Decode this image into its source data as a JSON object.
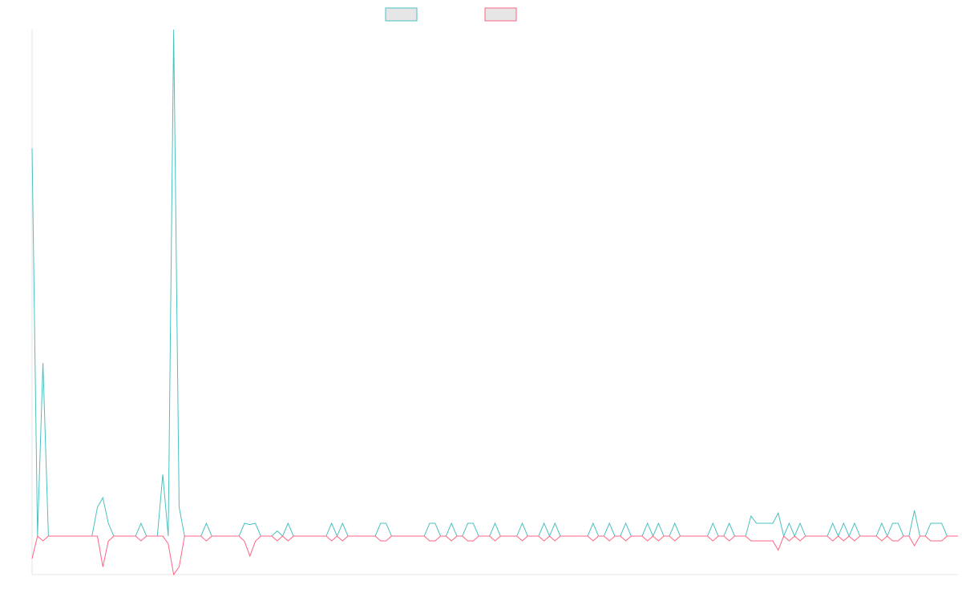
{
  "chart_data": {
    "type": "line",
    "ylim": [
      -3,
      39.5
    ],
    "series": [
      {
        "color": "#4bc0c0",
        "values": [
          30.25,
          0,
          13.5,
          0,
          0,
          0,
          0,
          0,
          0,
          0,
          0,
          0,
          2.25,
          3,
          1,
          0,
          0,
          0,
          0,
          0,
          1,
          0,
          0,
          0,
          4.8,
          0,
          39.5,
          2.25,
          0,
          0,
          0,
          0,
          1,
          0,
          0,
          0,
          0,
          0,
          0,
          1,
          0.9,
          1,
          0,
          0,
          0,
          0.4,
          0,
          1,
          0,
          0,
          0,
          0,
          0,
          0,
          0,
          1,
          0,
          1,
          0,
          0,
          0,
          0,
          0,
          0,
          1,
          1,
          0,
          0,
          0,
          0,
          0,
          0,
          0,
          1,
          1,
          0,
          0,
          1,
          0,
          0,
          1,
          1,
          0,
          0,
          0,
          1,
          0,
          0,
          0,
          0,
          1,
          0,
          0,
          0,
          1,
          0,
          1,
          0,
          0,
          0,
          0,
          0,
          0,
          1,
          0,
          0,
          1,
          0,
          0,
          1,
          0,
          0,
          0,
          1,
          0,
          1,
          0,
          0,
          1,
          0,
          0,
          0,
          0,
          0,
          0,
          1,
          0,
          0,
          1,
          0,
          0,
          0,
          1.56,
          1,
          1,
          1,
          1,
          1.8,
          0,
          1,
          0,
          1,
          0,
          0,
          0,
          0,
          0,
          1,
          0,
          1,
          0,
          1,
          0,
          0,
          0,
          0,
          1,
          0,
          1,
          1,
          0,
          0,
          2,
          0,
          0,
          1,
          1,
          1,
          0,
          0,
          0
        ]
      },
      {
        "color": "#ff6384",
        "values": [
          -1.75,
          0,
          -0.375,
          0,
          0,
          0,
          0,
          0,
          0,
          0,
          0,
          0,
          0,
          -2.4,
          -0.4,
          0,
          0,
          0,
          0,
          0,
          -0.375,
          0,
          0,
          0,
          0,
          -0.6,
          -3,
          -2.4,
          0,
          0,
          0,
          0,
          -0.375,
          0,
          0,
          0,
          0,
          0,
          0,
          -0.4,
          -1.56,
          -0.4,
          0,
          0,
          0,
          -0.375,
          0,
          -0.375,
          0,
          0,
          0,
          0,
          0,
          0,
          0,
          -0.375,
          0,
          -0.375,
          0,
          0,
          0,
          0,
          0,
          0,
          -0.375,
          -0.375,
          0,
          0,
          0,
          0,
          0,
          0,
          0,
          -0.375,
          -0.375,
          0,
          0,
          -0.375,
          0,
          0,
          -0.375,
          -0.375,
          0,
          0,
          0,
          -0.375,
          0,
          0,
          0,
          0,
          -0.375,
          0,
          0,
          0,
          -0.375,
          0,
          -0.375,
          0,
          0,
          0,
          0,
          0,
          0,
          -0.375,
          0,
          0,
          -0.375,
          0,
          0,
          -0.375,
          0,
          0,
          0,
          -0.375,
          0,
          -0.375,
          0,
          0,
          -0.375,
          0,
          0,
          0,
          0,
          0,
          0,
          -0.375,
          0,
          0,
          -0.375,
          0,
          0,
          0,
          -0.375,
          -0.375,
          -0.375,
          -0.375,
          -0.375,
          -1.1,
          0,
          -0.375,
          0,
          -0.375,
          0,
          0,
          0,
          0,
          0,
          -0.375,
          0,
          -0.375,
          0,
          -0.375,
          0,
          0,
          0,
          0,
          -0.375,
          0,
          -0.375,
          -0.375,
          0,
          0,
          -0.75,
          0,
          0,
          -0.375,
          -0.375,
          -0.375,
          0,
          0,
          0
        ]
      }
    ]
  }
}
